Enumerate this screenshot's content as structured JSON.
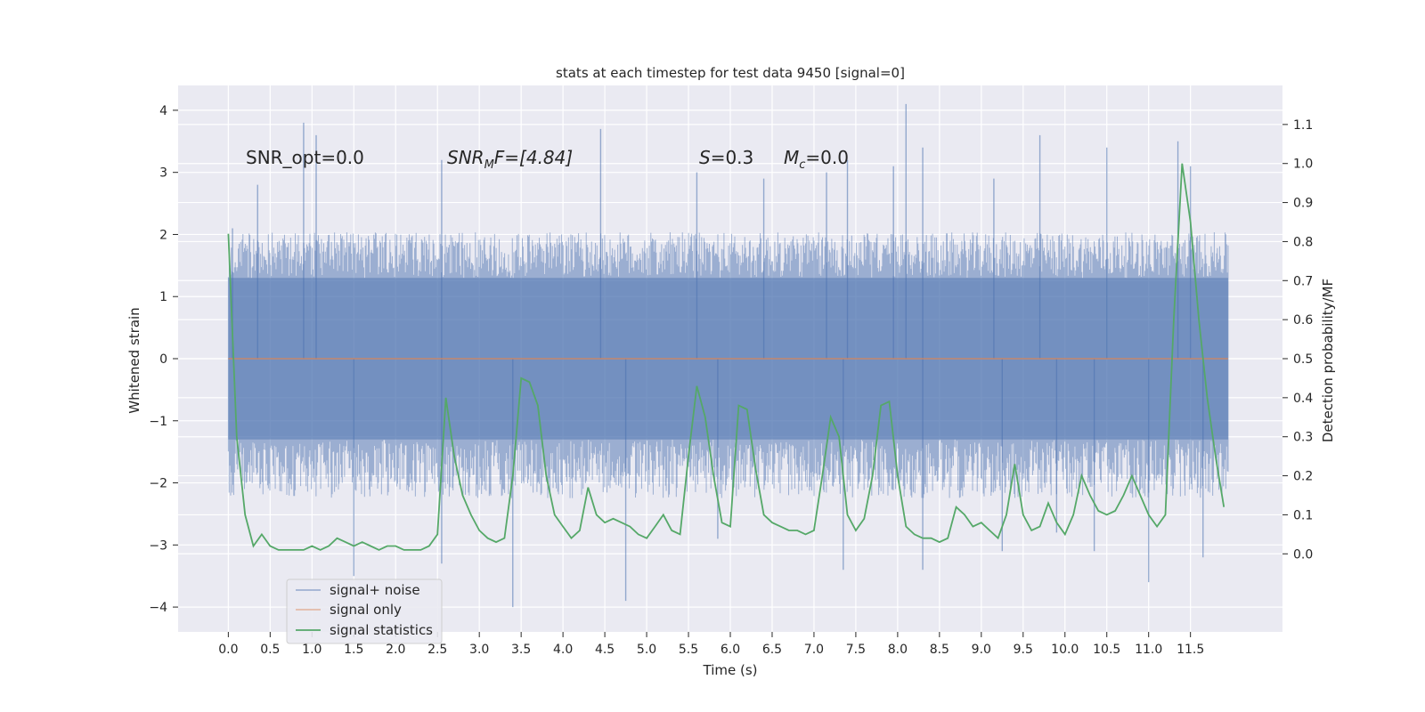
{
  "chart_data": {
    "type": "line",
    "title": "stats at each timestep for test data 9450 [signal=0]",
    "xlabel": "Time (s)",
    "ylabel_left": "Whitened strain",
    "ylabel_right": "Detection probability/MF",
    "xlim": [
      -0.6,
      12.6
    ],
    "ylim_left": [
      -4.4,
      4.4
    ],
    "ylim_right": [
      -0.2,
      1.2
    ],
    "x_ticks": [
      "0.0",
      "0.5",
      "1.0",
      "1.5",
      "2.0",
      "2.5",
      "3.0",
      "3.5",
      "4.0",
      "4.5",
      "5.0",
      "5.5",
      "6.0",
      "6.5",
      "7.0",
      "7.5",
      "8.0",
      "8.5",
      "9.0",
      "9.5",
      "10.0",
      "10.5",
      "11.0",
      "11.5"
    ],
    "y_left_ticks": [
      "4",
      "3",
      "2",
      "1",
      "0",
      "−1",
      "−2",
      "−3",
      "−4"
    ],
    "y_right_ticks": [
      "1.1",
      "1.0",
      "0.9",
      "0.8",
      "0.7",
      "0.6",
      "0.5",
      "0.4",
      "0.3",
      "0.2",
      "0.1",
      "0.0"
    ],
    "grid": true,
    "background": "#eaeaf2",
    "legend_position": "lower-left",
    "annotations": {
      "snr_opt": "SNR_opt=0.0",
      "snr_mf_base": "SNR",
      "snr_mf_sub": "M",
      "snr_mf_rest": "F=[4.84]",
      "s_base": "S",
      "s_rest": "=0.3",
      "mc_base": "M",
      "mc_sub": "c",
      "mc_rest": "=0.0"
    },
    "series": [
      {
        "name": "signal+ noise",
        "color": "#4c72b0",
        "axis": "left",
        "x_range": [
          0.0,
          11.95
        ],
        "core_band": [
          -1.3,
          1.3
        ],
        "typical_upper_envelope": 2.0,
        "typical_lower_envelope": -2.2,
        "spikes": [
          [
            0.05,
            2.1
          ],
          [
            0.35,
            2.8
          ],
          [
            0.9,
            3.8
          ],
          [
            1.05,
            3.6
          ],
          [
            2.55,
            3.2
          ],
          [
            4.45,
            3.7
          ],
          [
            5.6,
            3.0
          ],
          [
            6.4,
            2.9
          ],
          [
            7.15,
            3.0
          ],
          [
            7.4,
            3.2
          ],
          [
            7.95,
            3.1
          ],
          [
            8.1,
            4.1
          ],
          [
            8.3,
            3.4
          ],
          [
            9.15,
            2.9
          ],
          [
            9.7,
            3.6
          ],
          [
            10.5,
            3.4
          ],
          [
            11.35,
            3.5
          ],
          [
            11.5,
            3.1
          ],
          [
            1.5,
            -3.5
          ],
          [
            2.55,
            -3.3
          ],
          [
            3.4,
            -4.0
          ],
          [
            4.75,
            -3.9
          ],
          [
            7.35,
            -3.4
          ],
          [
            8.3,
            -3.4
          ],
          [
            9.25,
            -3.1
          ],
          [
            10.35,
            -3.1
          ],
          [
            11.0,
            -3.6
          ],
          [
            11.65,
            -3.2
          ],
          [
            5.85,
            -2.9
          ],
          [
            9.9,
            -2.8
          ]
        ]
      },
      {
        "name": "signal only",
        "color": "#dd8452",
        "axis": "left",
        "x": [
          0.0,
          11.95
        ],
        "y": [
          0.0,
          0.0
        ]
      },
      {
        "name": "signal statistics",
        "color": "#55a868",
        "axis": "right",
        "x": [
          0.0,
          0.1,
          0.2,
          0.3,
          0.4,
          0.5,
          0.6,
          0.7,
          0.8,
          0.9,
          1.0,
          1.1,
          1.2,
          1.3,
          1.4,
          1.5,
          1.6,
          1.7,
          1.8,
          1.9,
          2.0,
          2.1,
          2.2,
          2.3,
          2.4,
          2.5,
          2.6,
          2.7,
          2.8,
          2.9,
          3.0,
          3.1,
          3.2,
          3.3,
          3.4,
          3.5,
          3.6,
          3.7,
          3.8,
          3.9,
          4.0,
          4.1,
          4.2,
          4.3,
          4.4,
          4.5,
          4.6,
          4.7,
          4.8,
          4.9,
          5.0,
          5.1,
          5.2,
          5.3,
          5.4,
          5.5,
          5.6,
          5.7,
          5.8,
          5.9,
          6.0,
          6.1,
          6.2,
          6.3,
          6.4,
          6.5,
          6.6,
          6.7,
          6.8,
          6.9,
          7.0,
          7.1,
          7.2,
          7.3,
          7.4,
          7.5,
          7.6,
          7.7,
          7.8,
          7.9,
          8.0,
          8.1,
          8.2,
          8.3,
          8.4,
          8.5,
          8.6,
          8.7,
          8.8,
          8.9,
          9.0,
          9.1,
          9.2,
          9.3,
          9.4,
          9.5,
          9.6,
          9.7,
          9.8,
          9.9,
          10.0,
          10.1,
          10.2,
          10.3,
          10.4,
          10.5,
          10.6,
          10.7,
          10.8,
          10.9,
          11.0,
          11.1,
          11.2,
          11.3,
          11.4,
          11.5,
          11.6,
          11.7,
          11.8,
          11.9
        ],
        "y": [
          0.82,
          0.3,
          0.1,
          0.02,
          0.05,
          0.02,
          0.01,
          0.01,
          0.01,
          0.01,
          0.02,
          0.01,
          0.02,
          0.04,
          0.03,
          0.02,
          0.03,
          0.02,
          0.01,
          0.02,
          0.02,
          0.01,
          0.01,
          0.01,
          0.02,
          0.05,
          0.4,
          0.25,
          0.15,
          0.1,
          0.06,
          0.04,
          0.03,
          0.04,
          0.2,
          0.45,
          0.44,
          0.38,
          0.2,
          0.1,
          0.07,
          0.04,
          0.06,
          0.17,
          0.1,
          0.08,
          0.09,
          0.08,
          0.07,
          0.05,
          0.04,
          0.07,
          0.1,
          0.06,
          0.05,
          0.25,
          0.43,
          0.35,
          0.2,
          0.08,
          0.07,
          0.38,
          0.37,
          0.22,
          0.1,
          0.08,
          0.07,
          0.06,
          0.06,
          0.05,
          0.06,
          0.2,
          0.35,
          0.3,
          0.1,
          0.06,
          0.09,
          0.2,
          0.38,
          0.39,
          0.2,
          0.07,
          0.05,
          0.04,
          0.04,
          0.03,
          0.04,
          0.12,
          0.1,
          0.07,
          0.08,
          0.06,
          0.04,
          0.1,
          0.23,
          0.1,
          0.06,
          0.07,
          0.13,
          0.08,
          0.05,
          0.1,
          0.2,
          0.15,
          0.11,
          0.1,
          0.11,
          0.15,
          0.2,
          0.15,
          0.1,
          0.07,
          0.1,
          0.6,
          1.0,
          0.85,
          0.6,
          0.4,
          0.25,
          0.12
        ]
      }
    ]
  }
}
